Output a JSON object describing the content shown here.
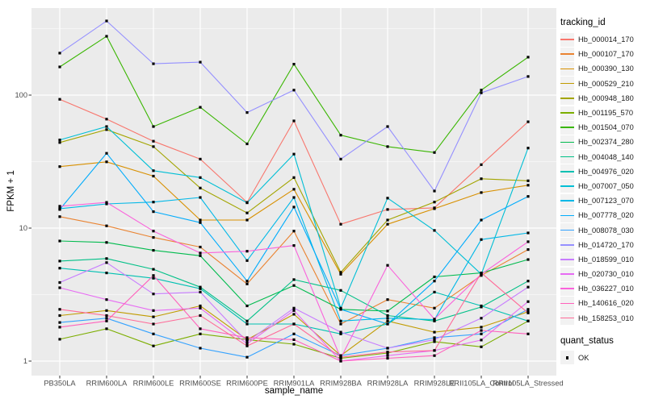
{
  "figure": {
    "background": "#FFFFFF",
    "panel_background": "#EBEBEB",
    "grid_major_color": "#FFFFFF",
    "grid_minor_color": "#FFFFFF",
    "axis_text_color": "#4D4D4D",
    "tick_mark_color": "#333333",
    "marker_color": "#000000",
    "legend_key_background": "#F2F2F2"
  },
  "axes": {
    "x_title": "sample_name",
    "y_title": "FPKM + 1",
    "y_tick_labels": [
      "1",
      "10",
      "100"
    ]
  },
  "legend": {
    "tracking_title": "tracking_id",
    "quant_title": "quant_status",
    "quant_value": "OK"
  },
  "chart_data": {
    "type": "line",
    "x_type": "categorical",
    "y_scale": "log10",
    "title": "",
    "xlabel": "sample_name",
    "ylabel": "FPKM + 1",
    "y_ticks": [
      1,
      10,
      100
    ],
    "y_minor_ticks": [
      3.162,
      31.62,
      316.2
    ],
    "ylim": [
      0.82,
      450
    ],
    "grid": true,
    "legend_position": "right",
    "marker": "black-square",
    "categories": [
      "PB350LA",
      "RRIM600LA",
      "RRIM600LE",
      "RRIM600SE",
      "RRIM600PE",
      "RRIM901LA",
      "RRIM928BA",
      "RRIM928LA",
      "RRIM928LE",
      "RRII105LA_Control",
      "RRII105LA_Stressed"
    ],
    "series": [
      {
        "name": "Hb_000014_170",
        "color": "#F8766D",
        "values": [
          93,
          66,
          45,
          33,
          15.6,
          64,
          10.7,
          13.8,
          14.2,
          30,
          63
        ]
      },
      {
        "name": "Hb_000107_170",
        "color": "#EA8331",
        "values": [
          12.2,
          10.4,
          8.5,
          7.2,
          3.8,
          9.5,
          1.9,
          2.9,
          2.5,
          4.4,
          6.9
        ]
      },
      {
        "name": "Hb_000390_130",
        "color": "#D89000",
        "values": [
          29,
          31.5,
          24.6,
          11.5,
          11.5,
          19.6,
          4.5,
          10.7,
          14,
          18.5,
          21
        ]
      },
      {
        "name": "Hb_000529_210",
        "color": "#C09B00",
        "values": [
          2.2,
          2.4,
          2.15,
          2.6,
          1.45,
          2.25,
          1.1,
          2.0,
          1.65,
          1.8,
          2.35
        ]
      },
      {
        "name": "Hb_000948_180",
        "color": "#A3A500",
        "values": [
          44,
          55,
          41,
          20,
          13,
          24,
          4.65,
          11.5,
          15.7,
          23.5,
          22.7
        ]
      },
      {
        "name": "Hb_001195_570",
        "color": "#7CAE00",
        "values": [
          1.46,
          1.75,
          1.3,
          1.6,
          1.45,
          1.34,
          1.05,
          1.15,
          1.4,
          1.28,
          2.0
        ]
      },
      {
        "name": "Hb_001504_070",
        "color": "#39B600",
        "values": [
          163,
          277,
          58,
          81,
          43,
          171,
          50,
          41,
          37,
          109,
          193
        ]
      },
      {
        "name": "Hb_002374_280",
        "color": "#00BB4E",
        "values": [
          8.0,
          7.8,
          6.8,
          6.2,
          2.6,
          3.7,
          2.45,
          2.38,
          4.3,
          4.6,
          5.8
        ]
      },
      {
        "name": "Hb_004048_140",
        "color": "#00C087",
        "values": [
          5.65,
          5.9,
          4.9,
          3.6,
          2.0,
          4.1,
          3.4,
          2.2,
          2.0,
          2.55,
          4.0
        ]
      },
      {
        "name": "Hb_004976_020",
        "color": "#00C0B2",
        "values": [
          5.0,
          4.6,
          4.2,
          3.5,
          1.9,
          1.9,
          1.6,
          1.9,
          3.3,
          2.6,
          2.0
        ]
      },
      {
        "name": "Hb_007007_050",
        "color": "#00BFD5",
        "values": [
          46,
          58,
          27,
          24,
          15.5,
          36,
          2.5,
          16.8,
          9.6,
          4.5,
          40
        ]
      },
      {
        "name": "Hb_007123_070",
        "color": "#00B8E7",
        "values": [
          14,
          15.2,
          15.7,
          17,
          5.7,
          17,
          2.0,
          2.1,
          2.05,
          8.2,
          9.2
        ]
      },
      {
        "name": "Hb_007778_020",
        "color": "#00ACFC",
        "values": [
          13.8,
          36.5,
          13.3,
          11,
          4.0,
          14.4,
          2.45,
          1.9,
          4.0,
          11.5,
          17.3
        ]
      },
      {
        "name": "Hb_008078_030",
        "color": "#35A2FF",
        "values": [
          1.95,
          2.1,
          1.6,
          1.25,
          1.07,
          1.6,
          1.1,
          1.25,
          1.5,
          1.6,
          2.45
        ]
      },
      {
        "name": "Hb_014720_170",
        "color": "#9590FF",
        "values": [
          207,
          361,
          172,
          177,
          74,
          109,
          33,
          58,
          19,
          104,
          138
        ]
      },
      {
        "name": "Hb_018599_010",
        "color": "#C77CFF",
        "values": [
          3.9,
          5.5,
          3.2,
          3.3,
          1.4,
          2.5,
          1.65,
          1.25,
          1.45,
          2.1,
          3.6
        ]
      },
      {
        "name": "Hb_020730_010",
        "color": "#E76BF3",
        "values": [
          3.56,
          2.9,
          2.4,
          2.5,
          1.35,
          2.4,
          1.0,
          1.1,
          1.2,
          1.44,
          2.8
        ]
      },
      {
        "name": "Hb_036227_010",
        "color": "#FA62DB",
        "values": [
          14.6,
          15.6,
          9.5,
          6.5,
          6.7,
          7.4,
          1.05,
          5.25,
          2.07,
          4.5,
          7.9
        ]
      },
      {
        "name": "Hb_140616_020",
        "color": "#FF62BC",
        "values": [
          1.8,
          2.0,
          4.4,
          1.75,
          1.5,
          1.45,
          1.0,
          1.05,
          1.1,
          1.7,
          1.6
        ]
      },
      {
        "name": "Hb_158253_010",
        "color": "#FF6A98",
        "values": [
          2.45,
          2.2,
          1.9,
          2.2,
          1.3,
          1.9,
          1.07,
          1.17,
          1.2,
          4.6,
          2.3
        ]
      }
    ]
  }
}
